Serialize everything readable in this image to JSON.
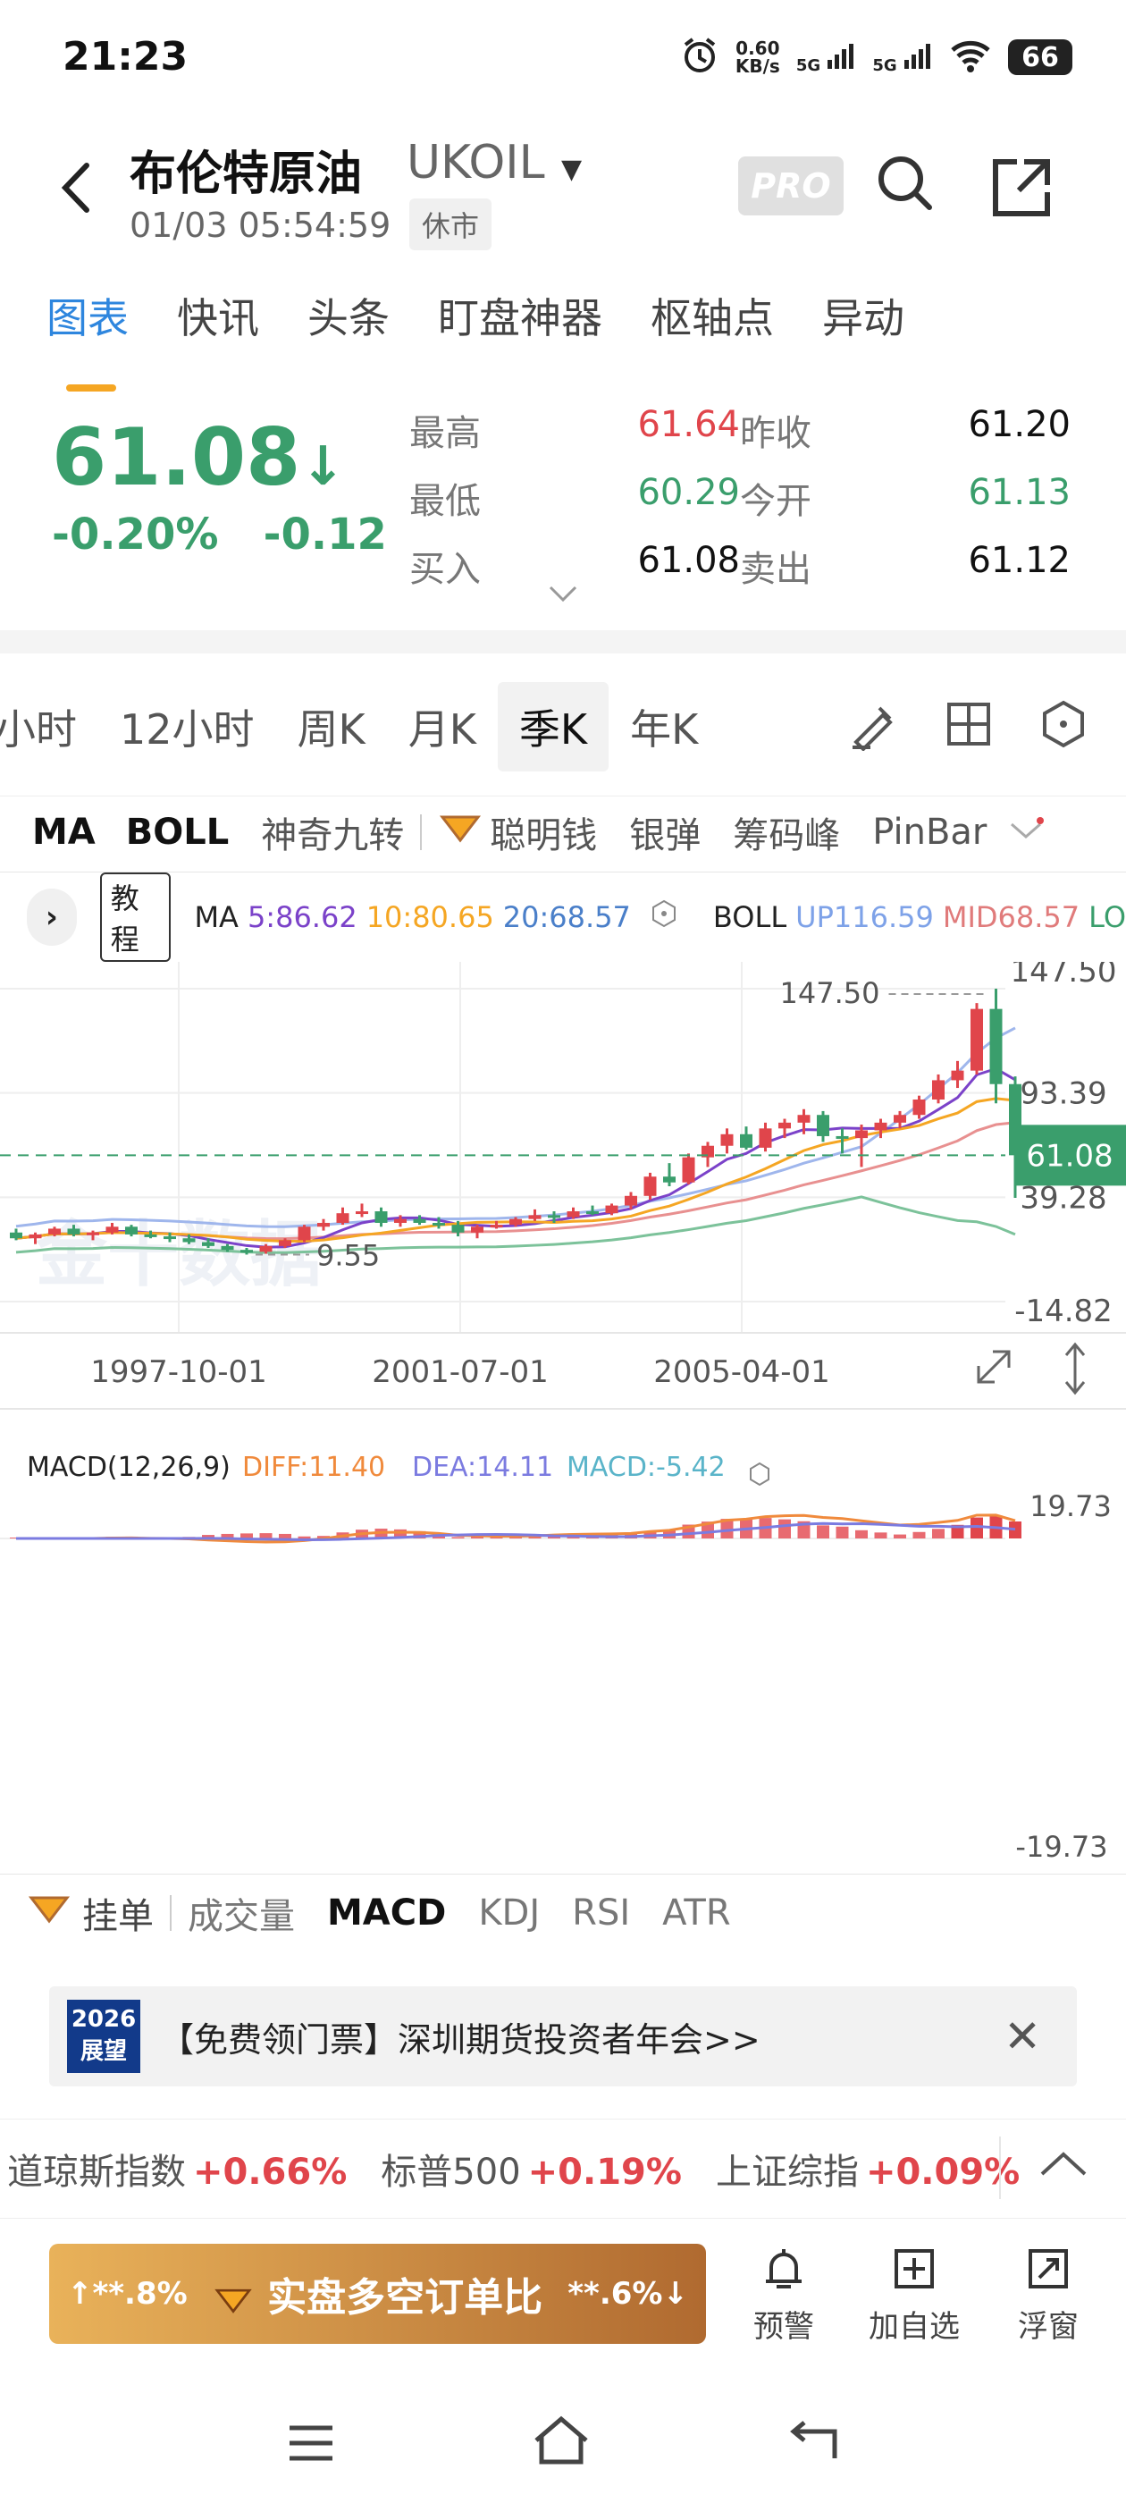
{
  "status": {
    "time": "21:23",
    "netspeed": "0.60",
    "netspeed_unit": "KB/s",
    "sig1": "5G",
    "sig2": "5G",
    "battery": "66"
  },
  "header": {
    "title": "布伦特原油",
    "code": "UKOIL",
    "datetime": "01/03 05:54:59",
    "market_status": "休市",
    "pro": "PRO"
  },
  "tabs": [
    "图表",
    "快讯",
    "头条",
    "盯盘神器",
    "枢轴点",
    "异动"
  ],
  "quote": {
    "last": "61.08",
    "arrow": "↓",
    "pct": "-0.20%",
    "chg": "-0.12",
    "rows": [
      {
        "l1": "最高",
        "v1": "61.64",
        "c1": "red",
        "l2": "昨收",
        "v2": "61.20",
        "c2": "dark"
      },
      {
        "l1": "最低",
        "v1": "60.29",
        "c1": "green",
        "l2": "今开",
        "v2": "61.13",
        "c2": "green"
      },
      {
        "l1": "买入",
        "v1": "61.08",
        "c1": "dark",
        "l2": "卖出",
        "v2": "61.12",
        "c2": "dark"
      }
    ]
  },
  "periods": [
    "小时",
    "12小时",
    "周K",
    "月K",
    "季K",
    "年K"
  ],
  "active_period": "季K",
  "indicators": [
    "MA",
    "BOLL",
    "神奇九转",
    "聪明钱",
    "银弹",
    "筹码峰",
    "PinBar"
  ],
  "legend": {
    "tutorial": "教程",
    "ma_label": "MA",
    "ma5": "5:86.62",
    "ma10": "10:80.65",
    "ma20": "20:68.57",
    "boll_label": "BOLL",
    "boll_up": "UP116.59",
    "boll_mid": "MID68.57",
    "boll_lo": "LO"
  },
  "chart_data": {
    "type": "candlestick",
    "x_labels": [
      "1997-10-01",
      "2001-07-01",
      "2005-04-01"
    ],
    "y_ticks": [
      "147.50",
      "93.39",
      "39.28",
      "-14.82"
    ],
    "ylim": [
      -14.82,
      147.5
    ],
    "last_price": "61.08",
    "max_label": "147.50",
    "min_label": "9.55",
    "watermark": "金十数据",
    "candles": [
      {
        "o": 21,
        "h": 23,
        "l": 17,
        "c": 18
      },
      {
        "o": 18,
        "h": 21,
        "l": 15,
        "c": 20
      },
      {
        "o": 20,
        "h": 24,
        "l": 19,
        "c": 23
      },
      {
        "o": 23,
        "h": 25,
        "l": 19,
        "c": 20
      },
      {
        "o": 20,
        "h": 22,
        "l": 17,
        "c": 21
      },
      {
        "o": 21,
        "h": 26,
        "l": 20,
        "c": 24
      },
      {
        "o": 24,
        "h": 25,
        "l": 19,
        "c": 20
      },
      {
        "o": 20,
        "h": 22,
        "l": 18,
        "c": 19
      },
      {
        "o": 19,
        "h": 21,
        "l": 16,
        "c": 18
      },
      {
        "o": 18,
        "h": 20,
        "l": 15,
        "c": 16
      },
      {
        "o": 16,
        "h": 18,
        "l": 13,
        "c": 14
      },
      {
        "o": 14,
        "h": 15,
        "l": 11,
        "c": 12
      },
      {
        "o": 12,
        "h": 13,
        "l": 9.55,
        "c": 11
      },
      {
        "o": 11,
        "h": 15,
        "l": 10,
        "c": 14
      },
      {
        "o": 14,
        "h": 18,
        "l": 13,
        "c": 17
      },
      {
        "o": 17,
        "h": 25,
        "l": 16,
        "c": 24
      },
      {
        "o": 24,
        "h": 28,
        "l": 22,
        "c": 26
      },
      {
        "o": 26,
        "h": 34,
        "l": 25,
        "c": 31
      },
      {
        "o": 31,
        "h": 36,
        "l": 29,
        "c": 32
      },
      {
        "o": 32,
        "h": 34,
        "l": 24,
        "c": 26
      },
      {
        "o": 26,
        "h": 30,
        "l": 24,
        "c": 28
      },
      {
        "o": 28,
        "h": 30,
        "l": 25,
        "c": 26
      },
      {
        "o": 26,
        "h": 29,
        "l": 23,
        "c": 25
      },
      {
        "o": 25,
        "h": 27,
        "l": 19,
        "c": 21
      },
      {
        "o": 21,
        "h": 25,
        "l": 18,
        "c": 24
      },
      {
        "o": 24,
        "h": 27,
        "l": 23,
        "c": 25
      },
      {
        "o": 25,
        "h": 29,
        "l": 24,
        "c": 28
      },
      {
        "o": 28,
        "h": 33,
        "l": 27,
        "c": 30
      },
      {
        "o": 30,
        "h": 32,
        "l": 26,
        "c": 29
      },
      {
        "o": 29,
        "h": 34,
        "l": 28,
        "c": 32
      },
      {
        "o": 32,
        "h": 35,
        "l": 30,
        "c": 31
      },
      {
        "o": 31,
        "h": 36,
        "l": 30,
        "c": 35
      },
      {
        "o": 35,
        "h": 42,
        "l": 33,
        "c": 40
      },
      {
        "o": 40,
        "h": 52,
        "l": 38,
        "c": 50
      },
      {
        "o": 50,
        "h": 57,
        "l": 45,
        "c": 47
      },
      {
        "o": 47,
        "h": 62,
        "l": 46,
        "c": 60
      },
      {
        "o": 60,
        "h": 68,
        "l": 55,
        "c": 66
      },
      {
        "o": 66,
        "h": 75,
        "l": 62,
        "c": 72
      },
      {
        "o": 72,
        "h": 76,
        "l": 64,
        "c": 65
      },
      {
        "o": 65,
        "h": 78,
        "l": 63,
        "c": 75
      },
      {
        "o": 75,
        "h": 80,
        "l": 70,
        "c": 78
      },
      {
        "o": 78,
        "h": 85,
        "l": 72,
        "c": 82
      },
      {
        "o": 82,
        "h": 84,
        "l": 68,
        "c": 71
      },
      {
        "o": 71,
        "h": 75,
        "l": 62,
        "c": 70
      },
      {
        "o": 70,
        "h": 77,
        "l": 55,
        "c": 74
      },
      {
        "o": 74,
        "h": 80,
        "l": 70,
        "c": 78
      },
      {
        "o": 78,
        "h": 84,
        "l": 75,
        "c": 82
      },
      {
        "o": 82,
        "h": 92,
        "l": 80,
        "c": 90
      },
      {
        "o": 90,
        "h": 103,
        "l": 88,
        "c": 100
      },
      {
        "o": 100,
        "h": 110,
        "l": 96,
        "c": 105
      },
      {
        "o": 105,
        "h": 140,
        "l": 103,
        "c": 137
      },
      {
        "o": 137,
        "h": 147.5,
        "l": 88,
        "c": 98
      },
      {
        "o": 98,
        "h": 102,
        "l": 39,
        "c": 61.08
      }
    ]
  },
  "macd": {
    "label": "MACD(12,26,9)",
    "diff": "DIFF:11.40",
    "dea": "DEA:14.11",
    "macd": "MACD:-5.42",
    "y_top": "19.73",
    "y_bottom": "-19.73"
  },
  "bottom_tabs": [
    "挂单",
    "成交量",
    "MACD",
    "KDJ",
    "RSI",
    "ATR"
  ],
  "ad": {
    "logo_top": "2026",
    "logo_bottom": "展望",
    "text": "【免费领门票】深圳期货投资者年会>>"
  },
  "ticker": [
    {
      "name": "道琼斯指数",
      "chg": "+0.66%"
    },
    {
      "name": "标普500",
      "chg": "+0.19%"
    },
    {
      "name": "上证综指",
      "chg": "+0.09%"
    }
  ],
  "actions": {
    "ratio_left": "↑**.8%",
    "ratio_mid": "实盘多空订单比",
    "ratio_right": "**.6%↓",
    "alert": "预警",
    "watchlist": "加自选",
    "float": "浮窗"
  },
  "colors": {
    "up": "#e0454b",
    "down": "#3a9e6c",
    "accent": "#2e86de"
  }
}
